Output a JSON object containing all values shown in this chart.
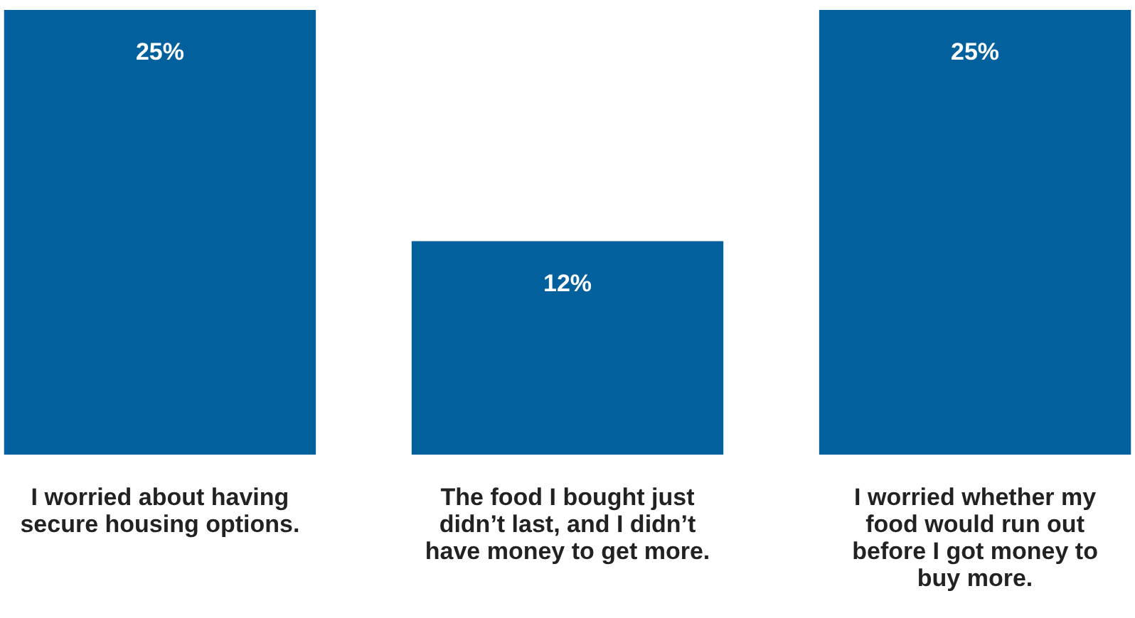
{
  "chart_data": {
    "type": "bar",
    "categories": [
      "I worried about having secure housing options.",
      "The food I bought just didn’t last, and I didn’t have money to get more.",
      "I worried whether my food would run out before I got money to buy more."
    ],
    "values": [
      25,
      12,
      25
    ],
    "color": "#02609c",
    "value_labels": [
      "25%",
      "12%",
      "25%"
    ]
  }
}
